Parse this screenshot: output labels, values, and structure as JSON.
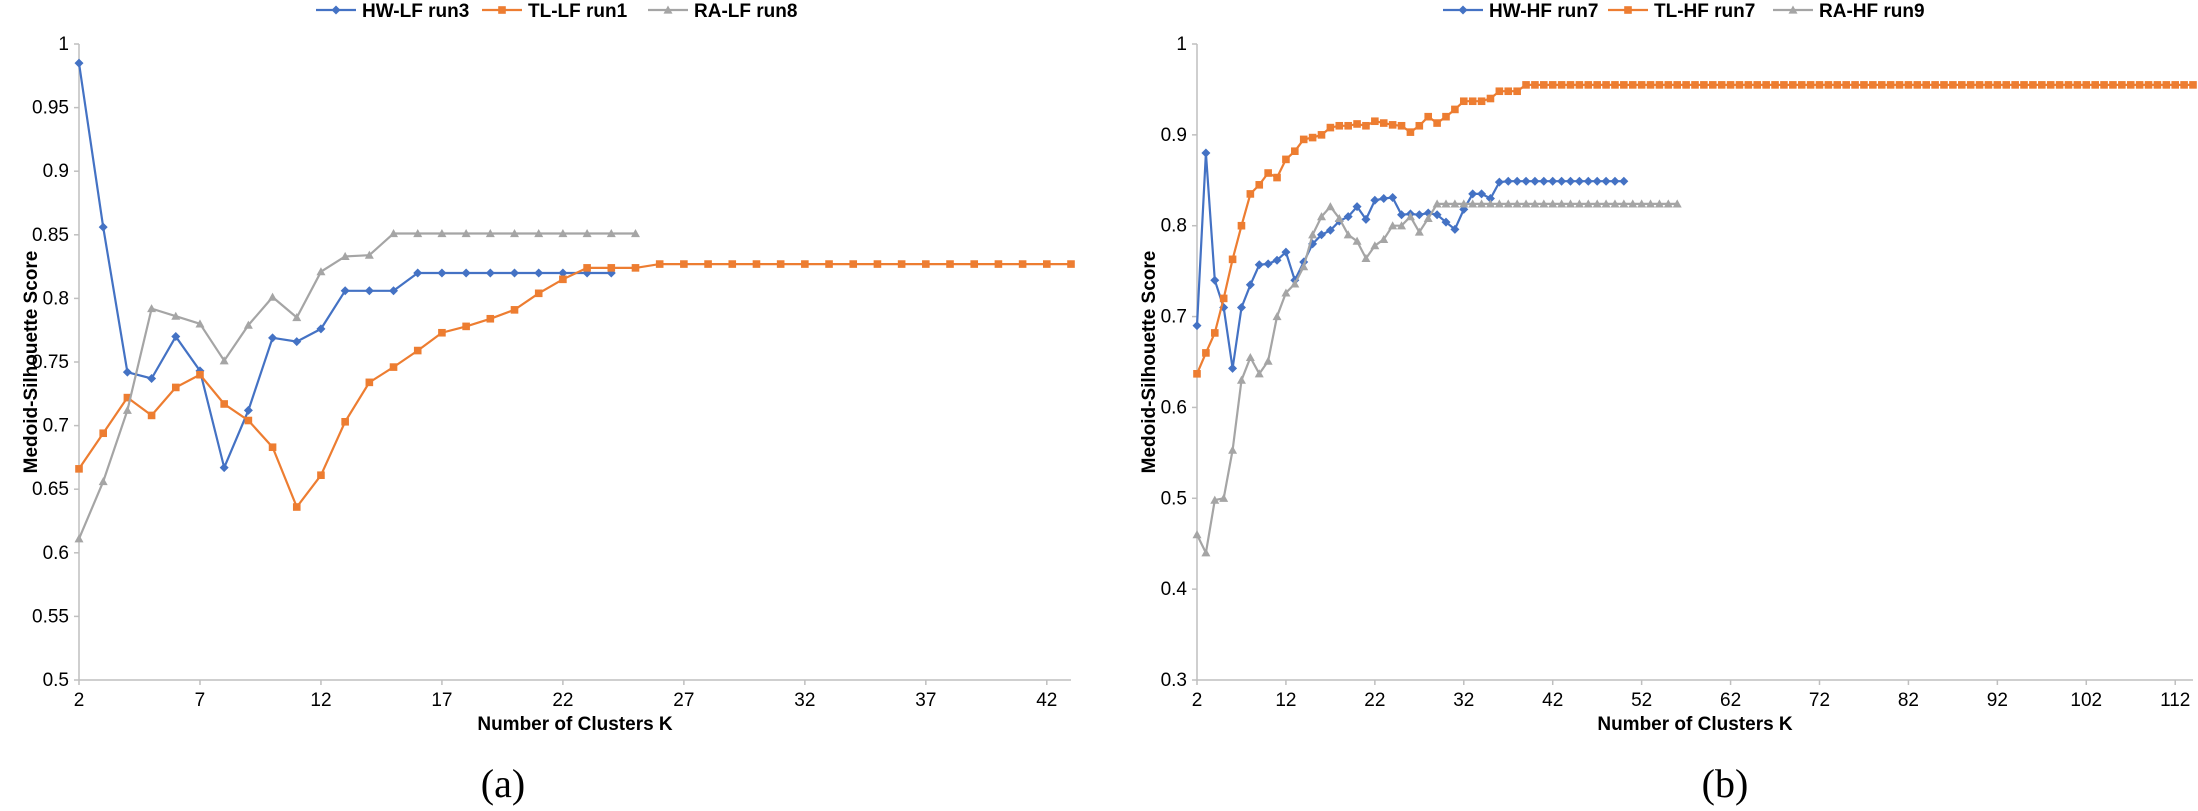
{
  "chart_data": [
    {
      "type": "line",
      "panel_label": "(a)",
      "xlabel": "Number of Clusters K",
      "ylabel": "Medoid-Silhouette Score",
      "xlim": [
        2,
        43
      ],
      "ylim": [
        0.5,
        1.0
      ],
      "xticks": [
        2,
        7,
        12,
        17,
        22,
        27,
        32,
        37,
        42
      ],
      "yticks": [
        0.5,
        0.55,
        0.6,
        0.65,
        0.7,
        0.75,
        0.8,
        0.85,
        0.9,
        0.95,
        1
      ],
      "ytick_labels": [
        "0.5",
        "0.55",
        "0.6",
        "0.65",
        "0.7",
        "0.75",
        "0.8",
        "0.85",
        "0.9",
        "0.95",
        "1"
      ],
      "legend_position": "top-center",
      "series": [
        {
          "name": "HW-LF run3",
          "color": "#4472C4",
          "marker": "diamond",
          "x": [
            2,
            3,
            4,
            5,
            6,
            7,
            8,
            9,
            10,
            11,
            12,
            13,
            14,
            15,
            16,
            17,
            18,
            19,
            20,
            21,
            22,
            23,
            24
          ],
          "y": [
            0.985,
            0.856,
            0.742,
            0.737,
            0.77,
            0.743,
            0.667,
            0.712,
            0.769,
            0.766,
            0.776,
            0.806,
            0.806,
            0.806,
            0.82,
            0.82,
            0.82,
            0.82,
            0.82,
            0.82,
            0.82,
            0.82,
            0.82
          ]
        },
        {
          "name": "TL-LF run1",
          "color": "#ED7D31",
          "marker": "square",
          "x": [
            2,
            3,
            4,
            5,
            6,
            7,
            8,
            9,
            10,
            11,
            12,
            13,
            14,
            15,
            16,
            17,
            18,
            19,
            20,
            21,
            22,
            23,
            24,
            25,
            26,
            27,
            28,
            29,
            30,
            31,
            32,
            33,
            34,
            35,
            36,
            37,
            38,
            39,
            40,
            41,
            42,
            43
          ],
          "y": [
            0.666,
            0.694,
            0.722,
            0.708,
            0.73,
            0.74,
            0.717,
            0.704,
            0.683,
            0.636,
            0.661,
            0.703,
            0.734,
            0.746,
            0.759,
            0.773,
            0.778,
            0.784,
            0.791,
            0.804,
            0.815,
            0.824,
            0.824,
            0.824,
            0.827,
            0.827,
            0.827,
            0.827,
            0.827,
            0.827,
            0.827,
            0.827,
            0.827,
            0.827,
            0.827,
            0.827,
            0.827,
            0.827,
            0.827,
            0.827,
            0.827,
            0.827
          ]
        },
        {
          "name": "RA-LF run8",
          "color": "#A5A5A5",
          "marker": "triangle",
          "x": [
            2,
            3,
            4,
            5,
            6,
            7,
            8,
            9,
            10,
            11,
            12,
            13,
            14,
            15,
            16,
            17,
            18,
            19,
            20,
            21,
            22,
            23,
            24,
            25
          ],
          "y": [
            0.611,
            0.656,
            0.712,
            0.792,
            0.786,
            0.78,
            0.751,
            0.779,
            0.801,
            0.785,
            0.821,
            0.833,
            0.834,
            0.851,
            0.851,
            0.851,
            0.851,
            0.851,
            0.851,
            0.851,
            0.851,
            0.851,
            0.851,
            0.851
          ]
        }
      ]
    },
    {
      "type": "line",
      "panel_label": "(b)",
      "xlabel": "Number of Clusters K",
      "ylabel": "Medoid-Silhouette Score",
      "xlim": [
        2,
        114
      ],
      "ylim": [
        0.3,
        1.0
      ],
      "xticks": [
        2,
        12,
        22,
        32,
        42,
        52,
        62,
        72,
        82,
        92,
        102,
        112
      ],
      "yticks": [
        0.3,
        0.4,
        0.5,
        0.6,
        0.7,
        0.8,
        0.9,
        1
      ],
      "ytick_labels": [
        "0.3",
        "0.4",
        "0.5",
        "0.6",
        "0.7",
        "0.8",
        "0.9",
        "1"
      ],
      "legend_position": "top-center",
      "series": [
        {
          "name": "HW-HF run7",
          "color": "#4472C4",
          "marker": "diamond",
          "x": [
            2,
            3,
            4,
            5,
            6,
            7,
            8,
            9,
            10,
            11,
            12,
            13,
            14,
            15,
            16,
            17,
            18,
            19,
            20,
            21,
            22,
            23,
            24,
            25,
            26,
            27,
            28,
            29,
            30,
            31,
            32,
            33,
            34,
            35,
            36,
            37,
            38,
            39,
            40,
            41,
            42,
            43,
            44,
            45,
            46,
            47,
            48,
            49,
            50
          ],
          "y": [
            0.69,
            0.88,
            0.74,
            0.71,
            0.643,
            0.71,
            0.735,
            0.757,
            0.758,
            0.762,
            0.771,
            0.74,
            0.76,
            0.78,
            0.79,
            0.795,
            0.805,
            0.81,
            0.821,
            0.807,
            0.828,
            0.83,
            0.831,
            0.812,
            0.813,
            0.812,
            0.814,
            0.812,
            0.804,
            0.796,
            0.818,
            0.835,
            0.835,
            0.83,
            0.848,
            0.849,
            0.849,
            0.849,
            0.849,
            0.849,
            0.849,
            0.849,
            0.849,
            0.849,
            0.849,
            0.849,
            0.849,
            0.849,
            0.849
          ]
        },
        {
          "name": "TL-HF run7",
          "color": "#ED7D31",
          "marker": "square",
          "x": [
            2,
            3,
            4,
            5,
            6,
            7,
            8,
            9,
            10,
            11,
            12,
            13,
            14,
            15,
            16,
            17,
            18,
            19,
            20,
            21,
            22,
            23,
            24,
            25,
            26,
            27,
            28,
            29,
            30,
            31,
            32,
            33,
            34,
            35,
            36,
            37,
            38,
            39,
            40,
            41,
            42,
            43,
            44,
            45,
            46,
            47,
            48,
            49,
            50,
            51,
            52,
            53,
            54,
            55,
            56,
            57,
            58,
            59,
            60,
            61,
            62,
            63,
            64,
            65,
            66,
            67,
            68,
            69,
            70,
            71,
            72,
            73,
            74,
            75,
            76,
            77,
            78,
            79,
            80,
            81,
            82,
            83,
            84,
            85,
            86,
            87,
            88,
            89,
            90,
            91,
            92,
            93,
            94,
            95,
            96,
            97,
            98,
            99,
            100,
            101,
            102,
            103,
            104,
            105,
            106,
            107,
            108,
            109,
            110,
            111,
            112,
            113,
            114
          ],
          "y": [
            0.637,
            0.66,
            0.682,
            0.72,
            0.763,
            0.8,
            0.835,
            0.845,
            0.858,
            0.853,
            0.873,
            0.882,
            0.895,
            0.897,
            0.9,
            0.908,
            0.91,
            0.91,
            0.912,
            0.91,
            0.915,
            0.913,
            0.911,
            0.91,
            0.903,
            0.91,
            0.92,
            0.913,
            0.92,
            0.928,
            0.937,
            0.937,
            0.937,
            0.94,
            0.948,
            0.948,
            0.948,
            0.955,
            0.955,
            0.955,
            0.955,
            0.955,
            0.955,
            0.955,
            0.955,
            0.955,
            0.955,
            0.955,
            0.955,
            0.955,
            0.955,
            0.955,
            0.955,
            0.955,
            0.955,
            0.955,
            0.955,
            0.955,
            0.955,
            0.955,
            0.955,
            0.955,
            0.955,
            0.955,
            0.955,
            0.955,
            0.955,
            0.955,
            0.955,
            0.955,
            0.955,
            0.955,
            0.955,
            0.955,
            0.955,
            0.955,
            0.955,
            0.955,
            0.955,
            0.955,
            0.955,
            0.955,
            0.955,
            0.955,
            0.955,
            0.955,
            0.955,
            0.955,
            0.955,
            0.955,
            0.955,
            0.955,
            0.955,
            0.955,
            0.955,
            0.955,
            0.955,
            0.955,
            0.955,
            0.955,
            0.955,
            0.955,
            0.955,
            0.955,
            0.955,
            0.955,
            0.955,
            0.955,
            0.955,
            0.955,
            0.955,
            0.955,
            0.955
          ]
        },
        {
          "name": "RA-HF run9",
          "color": "#A5A5A5",
          "marker": "triangle",
          "x": [
            2,
            3,
            4,
            5,
            6,
            7,
            8,
            9,
            10,
            11,
            12,
            13,
            14,
            15,
            16,
            17,
            18,
            19,
            20,
            21,
            22,
            23,
            24,
            25,
            26,
            27,
            28,
            29,
            30,
            31,
            32,
            33,
            34,
            35,
            36,
            37,
            38,
            39,
            40,
            41,
            42,
            43,
            44,
            45,
            46,
            47,
            48,
            49,
            50,
            51,
            52,
            53,
            54,
            55,
            56
          ],
          "y": [
            0.46,
            0.44,
            0.498,
            0.5,
            0.553,
            0.63,
            0.655,
            0.637,
            0.651,
            0.7,
            0.726,
            0.736,
            0.755,
            0.79,
            0.81,
            0.821,
            0.808,
            0.79,
            0.783,
            0.764,
            0.778,
            0.785,
            0.8,
            0.8,
            0.81,
            0.793,
            0.808,
            0.824,
            0.824,
            0.824,
            0.824,
            0.824,
            0.824,
            0.824,
            0.824,
            0.824,
            0.824,
            0.824,
            0.824,
            0.824,
            0.824,
            0.824,
            0.824,
            0.824,
            0.824,
            0.824,
            0.824,
            0.824,
            0.824,
            0.824,
            0.824,
            0.824,
            0.824,
            0.824,
            0.824
          ]
        }
      ]
    }
  ]
}
